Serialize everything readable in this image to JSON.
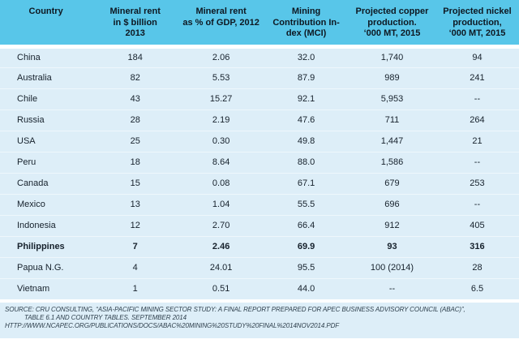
{
  "chart_data": {
    "type": "table",
    "columns": [
      "Country",
      "Mineral rent\nin $ billion\n2013",
      "Mineral rent\nas % of GDP, 2012",
      "Mining\nContribution In-\ndex (MCI)",
      "Projected copper\nproduction.\n‘000 MT, 2015",
      "Projected nickel\nproduction,\n‘000 MT, 2015"
    ],
    "rows": [
      {
        "bold": false,
        "cells": [
          "China",
          "184",
          "2.06",
          "32.0",
          "1,740",
          "94"
        ]
      },
      {
        "bold": false,
        "cells": [
          "Australia",
          "82",
          "5.53",
          "87.9",
          "989",
          "241"
        ]
      },
      {
        "bold": false,
        "cells": [
          "Chile",
          "43",
          "15.27",
          "92.1",
          "5,953",
          "--"
        ]
      },
      {
        "bold": false,
        "cells": [
          "Russia",
          "28",
          "2.19",
          "47.6",
          "711",
          "264"
        ]
      },
      {
        "bold": false,
        "cells": [
          "USA",
          "25",
          "0.30",
          "49.8",
          "1,447",
          "21"
        ]
      },
      {
        "bold": false,
        "cells": [
          "Peru",
          "18",
          "8.64",
          "88.0",
          "1,586",
          "--"
        ]
      },
      {
        "bold": false,
        "cells": [
          "Canada",
          "15",
          "0.08",
          "67.1",
          "679",
          "253"
        ]
      },
      {
        "bold": false,
        "cells": [
          "Mexico",
          "13",
          "1.04",
          "55.5",
          "696",
          "--"
        ]
      },
      {
        "bold": false,
        "cells": [
          "Indonesia",
          "12",
          "2.70",
          "66.4",
          "912",
          "405"
        ]
      },
      {
        "bold": true,
        "cells": [
          "Philippines",
          "7",
          "2.46",
          "69.9",
          "93",
          "316"
        ]
      },
      {
        "bold": false,
        "cells": [
          "Papua N.G.",
          "4",
          "24.01",
          "95.5",
          "100 (2014)",
          "28"
        ]
      },
      {
        "bold": false,
        "cells": [
          "Vietnam",
          "1",
          "0.51",
          "44.0",
          "--",
          "6.5"
        ]
      }
    ],
    "highlighted_row": "Philippines",
    "title": ""
  },
  "source": {
    "line1": "SOURCE: CRU CONSULTING, “ASIA-PACIFIC MINING SECTOR STUDY: A FINAL REPORT PREPARED FOR APEC BUSINESS ADVISORY COUNCIL (ABAC)”,",
    "line2": "TABLE 6.1 AND COUNTRY TABLES. SEPTEMBER 2014",
    "line3": "HTTP://WWW.NCAPEC.ORG/PUBLICATIONS/DOCS/ABAC%20MINING%20STUDY%20FINAL%2014NOV2014.PDF"
  },
  "colors": {
    "header_bg": "#58c6e9",
    "row_bg": "#ddeef8",
    "text": "#16212c",
    "source_text": "#2e3f4c"
  }
}
